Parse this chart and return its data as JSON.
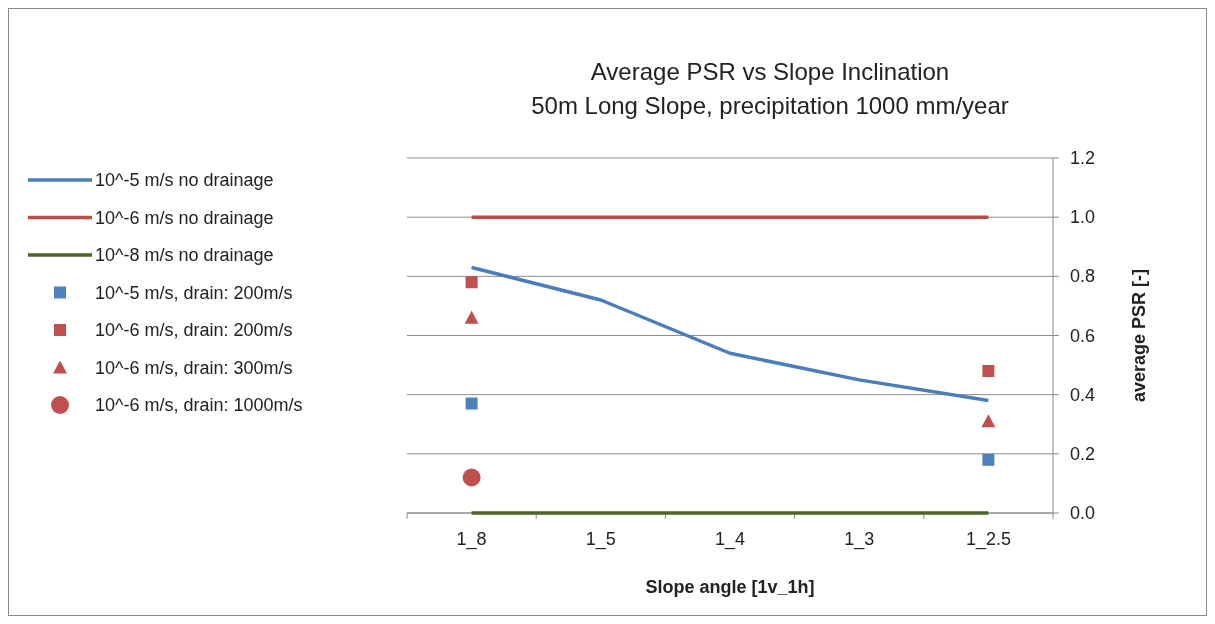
{
  "chart_data": {
    "type": "line",
    "title": "Average PSR vs Slope Inclination",
    "subtitle": "50m Long Slope, precipitation 1000 mm/year",
    "xlabel": "Slope angle [1v_1h]",
    "ylabel": "average PSR [-]",
    "categories": [
      "1_8",
      "1_5",
      "1_4",
      "1_3",
      "1_2.5"
    ],
    "ylim": [
      0,
      1.2
    ],
    "yticks": [
      {
        "value": 0,
        "label": "0.0"
      },
      {
        "value": 0.2,
        "label": "0.2"
      },
      {
        "value": 0.4,
        "label": "0.4"
      },
      {
        "value": 0.6,
        "label": "0.6"
      },
      {
        "value": 0.8,
        "label": "0.8"
      },
      {
        "value": 1,
        "label": "1.0"
      },
      {
        "value": 1.2,
        "label": "1.2"
      }
    ],
    "grid": "y",
    "legend": "left",
    "line_style": "solid",
    "series": [
      {
        "name": "10^-5 m/s no drainage",
        "color": "#4a7ebb",
        "marker": "none",
        "values": [
          0.83,
          0.72,
          0.54,
          0.45,
          0.38
        ]
      },
      {
        "name": "10^-6 m/s no drainage",
        "color": "#be4b48",
        "marker": "none",
        "values": [
          1.0,
          1.0,
          1.0,
          1.0,
          1.0
        ]
      },
      {
        "name": "10^-8 m/s no drainage",
        "color": "#4f6228",
        "marker": "none",
        "values": [
          0,
          0,
          0,
          0,
          0
        ]
      },
      {
        "name": "10^-5 m/s, drain: 200m/s",
        "type": "scatter",
        "color": "#4f81bd",
        "marker": "square",
        "values": [
          0.37,
          null,
          null,
          null,
          0.18
        ]
      },
      {
        "name": "10^-6 m/s, drain: 200m/s",
        "type": "scatter",
        "color": "#c0504d",
        "marker": "square",
        "values": [
          0.78,
          null,
          null,
          null,
          0.48
        ]
      },
      {
        "name": "10^-6 m/s, drain: 300m/s",
        "type": "scatter",
        "color": "#c0504d",
        "marker": "triangle",
        "values": [
          0.66,
          null,
          null,
          null,
          0.31
        ]
      },
      {
        "name": "10^-6 m/s, drain: 1000m/s",
        "type": "scatter",
        "color": "#c0504d",
        "marker": "circle",
        "values": [
          0.12,
          null,
          null,
          null,
          null
        ]
      }
    ]
  }
}
